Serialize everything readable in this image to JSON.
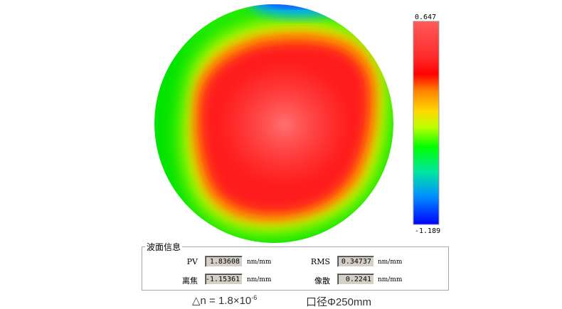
{
  "colorbar": {
    "max_label": "0.647",
    "min_label": "-1.189",
    "gradient_stops": [
      "#ff5555",
      "#ff2a2a",
      "#ff0000",
      "#ff8000",
      "#ffd000",
      "#c8ff00",
      "#00ff00",
      "#00e0a0",
      "#00a0ff",
      "#0040ff",
      "#0000ff"
    ]
  },
  "info": {
    "title": "波面信息",
    "pv_label": "PV",
    "pv_value": "1.83608",
    "pv_unit": "nm/mm",
    "rms_label": "RMS",
    "rms_value": "0.34737",
    "rms_unit": "nm/mm",
    "defocus_label": "离焦",
    "defocus_value": "-1.15361",
    "defocus_unit": "nm/mm",
    "astig_label": "像散",
    "astig_value": "0.2241",
    "astig_unit": "nm/mm"
  },
  "caption": {
    "index_prefix": "△n = 1.8×10",
    "index_exponent": "-6",
    "aperture": "口径Φ250mm"
  },
  "colors": {
    "peak": "#ff6a6a",
    "edge": "#00e000",
    "low": "#0000ff"
  }
}
